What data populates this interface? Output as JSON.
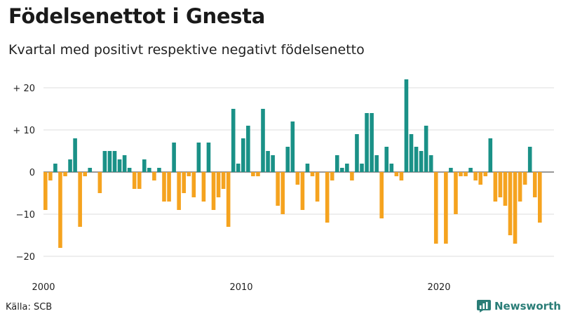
{
  "header": {
    "title": "Födelsenettot i Gnesta",
    "subtitle": "Kvartal med positivt respektive negativt födelsenetto"
  },
  "footer": {
    "source": "Källa: SCB",
    "brand": "Newsworthy"
  },
  "colors": {
    "positive": "#1a9187",
    "negative": "#f5a31f",
    "grid": "#dddddd",
    "baseline": "#333333",
    "brand": "#2a7d77"
  },
  "chart_data": {
    "type": "bar",
    "x_start": "2000 Q1",
    "x_tick_labels": [
      "2000",
      "2010",
      "2020"
    ],
    "y_tick_labels": [
      "+ 20",
      "+ 10",
      "0",
      "−10",
      "−20"
    ],
    "y_ticks": [
      20,
      10,
      0,
      -10,
      -20
    ],
    "ylim": [
      -23,
      23
    ],
    "grid": true,
    "legend": "none",
    "values": [
      -9,
      -2,
      2,
      -18,
      -1,
      3,
      8,
      -13,
      -1,
      1,
      0,
      -5,
      5,
      5,
      5,
      3,
      4,
      1,
      -4,
      -4,
      3,
      1,
      -2,
      1,
      -7,
      -7,
      7,
      -9,
      -5,
      -1,
      -6,
      7,
      -7,
      7,
      -9,
      -6,
      -4,
      -13,
      15,
      2,
      8,
      11,
      -1,
      -1,
      15,
      5,
      4,
      -8,
      -10,
      6,
      12,
      -3,
      -9,
      2,
      -1,
      -7,
      0,
      -12,
      -2,
      4,
      1,
      2,
      -2,
      9,
      2,
      14,
      14,
      4,
      -11,
      6,
      2,
      -1,
      -2,
      22,
      9,
      6,
      5,
      11,
      4,
      -17,
      0,
      -17,
      1,
      -10,
      -1,
      -1,
      1,
      -2,
      -3,
      -1,
      8,
      -7,
      -6,
      -8,
      -15,
      -17,
      -7,
      -3,
      6,
      -6,
      -12
    ]
  }
}
